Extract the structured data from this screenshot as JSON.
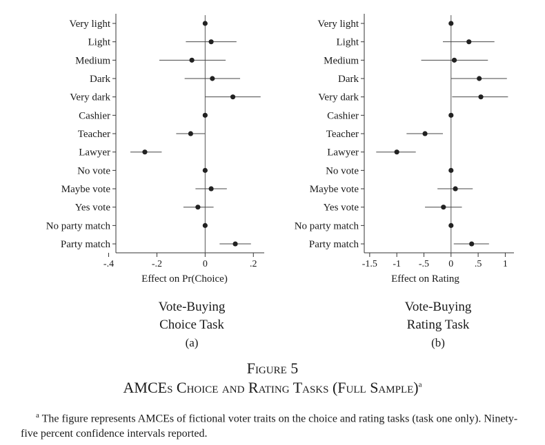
{
  "panels": [
    {
      "id": "a",
      "xlabel": "Effect on Pr(Choice)",
      "caption_line1": "Vote-Buying",
      "caption_line2": "Choice Task",
      "sub": "(a)"
    },
    {
      "id": "b",
      "xlabel": "Effect on Rating",
      "caption_line1": "Vote-Buying",
      "caption_line2": "Rating Task",
      "sub": "(b)"
    }
  ],
  "figure": {
    "label": "Figure 5",
    "title": "AMCEs Choice and Rating Tasks (Full Sample)",
    "title_mark": "a"
  },
  "footnote": {
    "mark": "a",
    "text": "The figure represents AMCEs of fictional voter traits on the choice and rating tasks (task one only). Ninety-five percent confidence intervals reported."
  },
  "chart_data": [
    {
      "type": "scatter",
      "subtype": "coefficient-plot",
      "categories": [
        "Very light",
        "Light",
        "Medium",
        "Dark",
        "Very dark",
        "Cashier",
        "Teacher",
        "Lawyer",
        "No vote",
        "Maybe vote",
        "Yes vote",
        "No party match",
        "Party match"
      ],
      "estimate": [
        0,
        0.025,
        -0.055,
        0.03,
        0.115,
        0,
        -0.06,
        -0.25,
        0,
        0.025,
        -0.03,
        0,
        0.125
      ],
      "ci_low": [
        0,
        -0.08,
        -0.19,
        -0.085,
        0,
        0,
        -0.12,
        -0.31,
        0,
        -0.04,
        -0.09,
        0,
        0.06
      ],
      "ci_high": [
        0,
        0.13,
        0.085,
        0.145,
        0.23,
        0,
        0,
        -0.18,
        0,
        0.09,
        0.035,
        0,
        0.19
      ],
      "xticks": [
        -0.4,
        -0.2,
        0,
        0.2
      ],
      "xtick_labels": [
        "-.4",
        "-.2",
        "0",
        ".2"
      ],
      "xlim": [
        -0.37,
        0.245
      ],
      "xlabel": "Effect on Pr(Choice)",
      "grid": false
    },
    {
      "type": "scatter",
      "subtype": "coefficient-plot",
      "categories": [
        "Very light",
        "Light",
        "Medium",
        "Dark",
        "Very dark",
        "Cashier",
        "Teacher",
        "Lawyer",
        "No vote",
        "Maybe vote",
        "Yes vote",
        "No party match",
        "Party match"
      ],
      "estimate": [
        0,
        0.33,
        0.06,
        0.52,
        0.55,
        0,
        -0.48,
        -1.0,
        0,
        0.08,
        -0.14,
        0,
        0.38
      ],
      "ci_low": [
        0,
        -0.15,
        -0.55,
        0,
        0.02,
        0,
        -0.82,
        -1.38,
        0,
        -0.25,
        -0.48,
        0,
        0.05
      ],
      "ci_high": [
        0,
        0.8,
        0.68,
        1.03,
        1.05,
        0,
        -0.15,
        -0.65,
        0,
        0.4,
        0.2,
        0,
        0.7
      ],
      "xticks": [
        -1.5,
        -1,
        -0.5,
        0,
        0.5,
        1
      ],
      "xtick_labels": [
        "-1.5",
        "-1",
        "-.5",
        "0",
        ".5",
        "1"
      ],
      "xlim": [
        -1.6,
        1.16
      ],
      "xlabel": "Effect on Rating",
      "grid": false
    }
  ]
}
